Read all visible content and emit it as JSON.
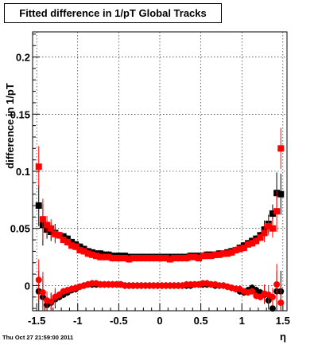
{
  "chart_data": {
    "type": "scatter",
    "title": "Fitted difference in 1/pT  Global Tracks",
    "xlabel": "η",
    "ylabel": "difference in 1/pT",
    "xlim": [
      -1.55,
      1.55
    ],
    "ylim": [
      -0.022,
      0.222
    ],
    "x_ticks": [
      -1.5,
      -1,
      -0.5,
      0,
      0.5,
      1,
      1.5
    ],
    "x_tick_labels": [
      "-1.5",
      "-1",
      "-0.5",
      "0",
      "0.5",
      "1",
      "1.5"
    ],
    "y_ticks": [
      0,
      0.05,
      0.1,
      0.15,
      0.2
    ],
    "y_tick_labels": [
      "0",
      "0.05",
      "0.1",
      "0.15",
      "0.2"
    ],
    "grid": true,
    "series": [
      {
        "color": "#000000",
        "marker": "square",
        "x": [
          -1.475,
          -1.425,
          -1.375,
          -1.325,
          -1.275,
          -1.225,
          -1.175,
          -1.125,
          -1.075,
          -1.025,
          -0.975,
          -0.925,
          -0.875,
          -0.825,
          -0.775,
          -0.725,
          -0.675,
          -0.625,
          -0.575,
          -0.525,
          -0.475,
          -0.425,
          -0.375,
          -0.325,
          -0.275,
          -0.225,
          -0.175,
          -0.125,
          -0.075,
          -0.025,
          0.025,
          0.075,
          0.125,
          0.175,
          0.225,
          0.275,
          0.325,
          0.375,
          0.425,
          0.475,
          0.525,
          0.575,
          0.625,
          0.675,
          0.725,
          0.775,
          0.825,
          0.875,
          0.925,
          0.975,
          1.025,
          1.075,
          1.125,
          1.175,
          1.225,
          1.275,
          1.325,
          1.375,
          1.425,
          1.475
        ],
        "y": [
          0.07,
          0.053,
          0.049,
          0.047,
          0.046,
          0.044,
          0.043,
          0.041,
          0.038,
          0.036,
          0.034,
          0.032,
          0.03,
          0.029,
          0.028,
          0.028,
          0.027,
          0.027,
          0.026,
          0.026,
          0.026,
          0.026,
          0.025,
          0.025,
          0.025,
          0.025,
          0.025,
          0.025,
          0.025,
          0.025,
          0.025,
          0.025,
          0.025,
          0.025,
          0.025,
          0.025,
          0.025,
          0.026,
          0.026,
          0.026,
          0.026,
          0.027,
          0.027,
          0.027,
          0.028,
          0.028,
          0.029,
          0.03,
          0.031,
          0.033,
          0.035,
          0.037,
          0.039,
          0.041,
          0.044,
          0.049,
          0.054,
          0.063,
          0.081,
          0.08
        ]
      },
      {
        "color": "#ff0000",
        "marker": "square",
        "x": [
          -1.475,
          -1.425,
          -1.375,
          -1.325,
          -1.275,
          -1.225,
          -1.175,
          -1.125,
          -1.075,
          -1.025,
          -0.975,
          -0.925,
          -0.875,
          -0.825,
          -0.775,
          -0.725,
          -0.675,
          -0.625,
          -0.575,
          -0.525,
          -0.475,
          -0.425,
          -0.375,
          -0.325,
          -0.275,
          -0.225,
          -0.175,
          -0.125,
          -0.075,
          -0.025,
          0.025,
          0.075,
          0.125,
          0.175,
          0.225,
          0.275,
          0.325,
          0.375,
          0.425,
          0.475,
          0.525,
          0.575,
          0.625,
          0.675,
          0.725,
          0.775,
          0.825,
          0.875,
          0.925,
          0.975,
          1.025,
          1.075,
          1.125,
          1.175,
          1.225,
          1.275,
          1.325,
          1.375,
          1.425,
          1.475
        ],
        "y": [
          0.104,
          0.058,
          0.053,
          0.05,
          0.045,
          0.044,
          0.04,
          0.038,
          0.035,
          0.034,
          0.031,
          0.03,
          0.028,
          0.027,
          0.026,
          0.025,
          0.025,
          0.025,
          0.024,
          0.024,
          0.024,
          0.024,
          0.023,
          0.024,
          0.024,
          0.024,
          0.024,
          0.024,
          0.024,
          0.024,
          0.024,
          0.024,
          0.023,
          0.024,
          0.024,
          0.024,
          0.024,
          0.025,
          0.025,
          0.024,
          0.026,
          0.026,
          0.026,
          0.027,
          0.027,
          0.028,
          0.028,
          0.029,
          0.031,
          0.032,
          0.033,
          0.036,
          0.037,
          0.039,
          0.042,
          0.046,
          0.052,
          0.05,
          0.065,
          0.12
        ]
      },
      {
        "color": "#000000",
        "marker": "circle",
        "x": [
          -1.475,
          -1.425,
          -1.375,
          -1.325,
          -1.275,
          -1.225,
          -1.175,
          -1.125,
          -1.075,
          -1.025,
          -0.975,
          -0.925,
          -0.875,
          -0.825,
          -0.775,
          -0.725,
          -0.675,
          -0.625,
          -0.575,
          -0.525,
          -0.475,
          -0.425,
          -0.375,
          -0.325,
          -0.275,
          -0.225,
          -0.175,
          -0.125,
          -0.075,
          -0.025,
          0.025,
          0.075,
          0.125,
          0.175,
          0.225,
          0.275,
          0.325,
          0.375,
          0.425,
          0.475,
          0.525,
          0.575,
          0.625,
          0.675,
          0.725,
          0.775,
          0.825,
          0.875,
          0.925,
          0.975,
          1.025,
          1.075,
          1.125,
          1.175,
          1.225,
          1.275,
          1.325,
          1.375,
          1.425,
          1.475
        ],
        "y": [
          -0.005,
          -0.01,
          -0.017,
          -0.015,
          -0.012,
          -0.01,
          -0.008,
          -0.006,
          -0.004,
          -0.003,
          -0.001,
          0,
          0.001,
          0.001,
          0.001,
          0.001,
          0.001,
          0.001,
          0.001,
          0.001,
          0.001,
          0,
          0,
          0,
          0,
          0,
          0,
          0,
          0,
          0,
          0,
          0,
          0,
          0,
          0,
          0,
          0,
          0,
          0.001,
          0.001,
          0.001,
          0.001,
          0.001,
          0,
          0,
          0,
          -0.001,
          -0.002,
          -0.003,
          -0.005,
          -0.006,
          -0.004,
          -0.002,
          -0.004,
          -0.006,
          -0.008,
          -0.013,
          -0.02,
          -0.005,
          -0.005
        ]
      },
      {
        "color": "#ff0000",
        "marker": "circle",
        "x": [
          -1.475,
          -1.425,
          -1.375,
          -1.325,
          -1.275,
          -1.225,
          -1.175,
          -1.125,
          -1.075,
          -1.025,
          -0.975,
          -0.925,
          -0.875,
          -0.825,
          -0.775,
          -0.725,
          -0.675,
          -0.625,
          -0.575,
          -0.525,
          -0.475,
          -0.425,
          -0.375,
          -0.325,
          -0.275,
          -0.225,
          -0.175,
          -0.125,
          -0.075,
          -0.025,
          0.025,
          0.075,
          0.125,
          0.175,
          0.225,
          0.275,
          0.325,
          0.375,
          0.425,
          0.475,
          0.525,
          0.575,
          0.625,
          0.675,
          0.725,
          0.775,
          0.825,
          0.875,
          0.925,
          0.975,
          1.025,
          1.075,
          1.125,
          1.175,
          1.225,
          1.275,
          1.325,
          1.375,
          1.425,
          1.475
        ],
        "y": [
          0.005,
          -0.006,
          -0.013,
          -0.014,
          -0.01,
          -0.008,
          -0.005,
          -0.004,
          -0.003,
          -0.002,
          -0.001,
          0,
          0.001,
          0.002,
          0.002,
          0.001,
          0.001,
          0.001,
          0.001,
          0.001,
          0.001,
          0,
          0,
          0,
          0,
          0,
          0,
          0,
          0,
          0,
          0,
          0,
          0,
          0,
          0,
          0,
          0.001,
          0.001,
          0.001,
          0.001,
          0.002,
          0.002,
          0.001,
          0.001,
          0,
          0,
          -0.001,
          -0.002,
          -0.003,
          -0.003,
          -0.005,
          -0.006,
          -0.005,
          -0.009,
          -0.01,
          -0.007,
          -0.008,
          -0.01,
          0.001,
          -0.015
        ]
      }
    ]
  },
  "footer": {
    "timestamp": "Thu Oct 27 21:59:00 2011"
  }
}
